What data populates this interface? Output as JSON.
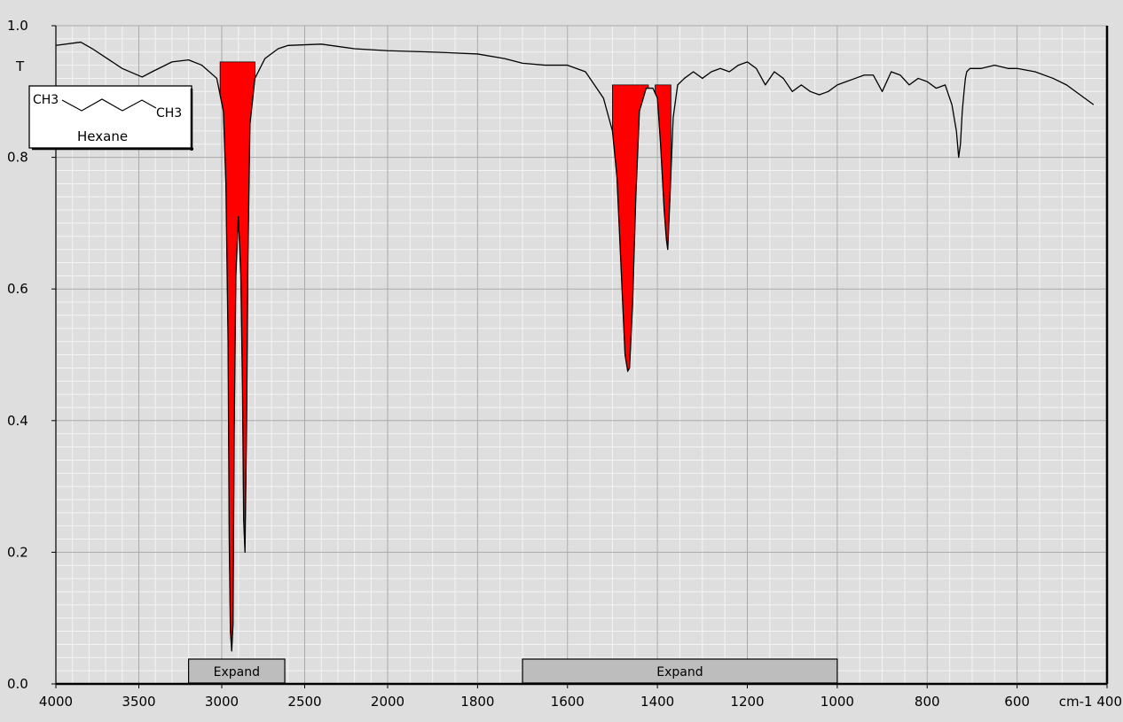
{
  "chart_data": {
    "type": "line",
    "title": "",
    "xlabel": "",
    "ylabel": "T",
    "x_unit": "cm-1",
    "xlim": [
      4000,
      400
    ],
    "ylim": [
      0.0,
      1.0
    ],
    "x_reversed": true,
    "grid": true,
    "x_tick_labels": [
      "4000",
      "3500",
      "3000",
      "2500",
      "2000",
      "1800",
      "1600",
      "1400",
      "1200",
      "1000",
      "800",
      "600",
      "cm-1 400"
    ],
    "y_tick_labels": [
      "0.0",
      "0.2",
      "0.4",
      "0.6",
      "0.8",
      "1.0"
    ],
    "series": [
      {
        "color": "#000000",
        "x": [
          4000,
          3850,
          3780,
          3600,
          3480,
          3420,
          3300,
          3200,
          3120,
          3030,
          2990,
          2975,
          2962,
          2955,
          2948,
          2940,
          2932,
          2925,
          2915,
          2900,
          2885,
          2875,
          2868,
          2860,
          2850,
          2842,
          2830,
          2800,
          2740,
          2660,
          2600,
          2400,
          2200,
          2000,
          1900,
          1800,
          1740,
          1700,
          1650,
          1600,
          1560,
          1520,
          1500,
          1490,
          1480,
          1472,
          1466,
          1462,
          1455,
          1448,
          1440,
          1425,
          1410,
          1400,
          1393,
          1385,
          1380,
          1377,
          1372,
          1365,
          1355,
          1340,
          1320,
          1300,
          1280,
          1260,
          1240,
          1220,
          1200,
          1180,
          1160,
          1140,
          1120,
          1100,
          1080,
          1060,
          1040,
          1020,
          1000,
          980,
          960,
          940,
          920,
          900,
          880,
          860,
          840,
          820,
          800,
          780,
          760,
          745,
          735,
          730,
          726,
          722,
          718,
          715,
          712,
          705,
          695,
          680,
          650,
          620,
          600,
          560,
          520,
          490,
          460,
          430
        ],
        "y": [
          0.97,
          0.975,
          0.965,
          0.935,
          0.922,
          0.93,
          0.945,
          0.948,
          0.94,
          0.92,
          0.87,
          0.76,
          0.52,
          0.22,
          0.08,
          0.05,
          0.09,
          0.38,
          0.62,
          0.71,
          0.62,
          0.45,
          0.25,
          0.2,
          0.4,
          0.65,
          0.85,
          0.92,
          0.95,
          0.965,
          0.97,
          0.972,
          0.965,
          0.962,
          0.96,
          0.957,
          0.95,
          0.943,
          0.94,
          0.94,
          0.93,
          0.89,
          0.84,
          0.77,
          0.62,
          0.5,
          0.475,
          0.48,
          0.58,
          0.74,
          0.87,
          0.905,
          0.905,
          0.89,
          0.82,
          0.72,
          0.675,
          0.66,
          0.74,
          0.86,
          0.91,
          0.92,
          0.93,
          0.92,
          0.93,
          0.935,
          0.93,
          0.94,
          0.945,
          0.935,
          0.91,
          0.93,
          0.92,
          0.9,
          0.91,
          0.9,
          0.895,
          0.9,
          0.91,
          0.915,
          0.92,
          0.925,
          0.925,
          0.9,
          0.93,
          0.925,
          0.91,
          0.92,
          0.915,
          0.905,
          0.91,
          0.88,
          0.84,
          0.8,
          0.82,
          0.87,
          0.9,
          0.92,
          0.93,
          0.935,
          0.935,
          0.935,
          0.94,
          0.935,
          0.935,
          0.93,
          0.92,
          0.91,
          0.895,
          0.88
        ]
      }
    ],
    "highlighted_bands": [
      {
        "color": "#ff0000",
        "x_start": 3010,
        "x_end": 2800,
        "y_baseline": 0.945
      },
      {
        "color": "#ff0000",
        "x_start": 1500,
        "x_end": 1420,
        "y_baseline": 0.91
      },
      {
        "color": "#ff0000",
        "x_start": 1405,
        "x_end": 1370,
        "y_baseline": 0.91
      }
    ],
    "expand_buttons": [
      {
        "label": "Expand",
        "x_start": 3200,
        "x_end": 2620
      },
      {
        "label": "Expand",
        "x_start": 1700,
        "x_end": 1000
      }
    ],
    "structure_box": {
      "left_group": "CH3",
      "right_group": "CH3",
      "name": "Hexane"
    }
  }
}
